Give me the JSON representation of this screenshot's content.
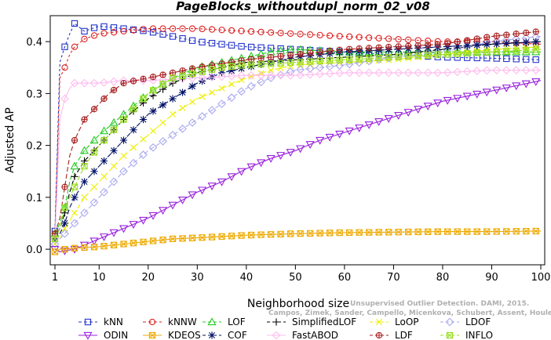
{
  "chart_data": {
    "type": "line",
    "title": "PageBlocks_withoutdupl_norm_02_v08",
    "xlabel": "Neighborhood size",
    "ylabel": "Adjusted AP",
    "xlim": [
      1,
      100
    ],
    "ylim": [
      -0.03,
      0.45
    ],
    "xticks": [
      1,
      10,
      20,
      30,
      40,
      50,
      60,
      70,
      80,
      90,
      100
    ],
    "yticks": [
      0.0,
      0.1,
      0.2,
      0.3,
      0.4
    ],
    "ytick_labels": [
      "0.0",
      "0.1",
      "0.2",
      "0.3",
      "0.4"
    ],
    "grid": false,
    "legend_position": "bottom",
    "watermark": [
      "Unsupervised Outlier Detection. DAMI, 2015.",
      "Campos, Zimek, Sander, Campello, Micenkova, Schubert, Assent, Houle"
    ],
    "series": [
      {
        "name": "kNN",
        "color": "#2233cc",
        "marker": "square",
        "dash": "3,3",
        "points": [
          [
            1,
            0.035
          ],
          [
            2,
            0.36
          ],
          [
            3,
            0.39
          ],
          [
            4,
            0.415
          ],
          [
            5,
            0.435
          ],
          [
            7,
            0.42
          ],
          [
            10,
            0.43
          ],
          [
            15,
            0.425
          ],
          [
            20,
            0.42
          ],
          [
            25,
            0.41
          ],
          [
            30,
            0.4
          ],
          [
            35,
            0.395
          ],
          [
            40,
            0.39
          ],
          [
            50,
            0.385
          ],
          [
            60,
            0.38
          ],
          [
            70,
            0.375
          ],
          [
            80,
            0.37
          ],
          [
            90,
            0.368
          ],
          [
            100,
            0.365
          ]
        ]
      },
      {
        "name": "kNNW",
        "color": "#dd2222",
        "marker": "circle",
        "dash": "3,3",
        "points": [
          [
            1,
            0.03
          ],
          [
            2,
            0.33
          ],
          [
            3,
            0.35
          ],
          [
            4,
            0.375
          ],
          [
            5,
            0.39
          ],
          [
            7,
            0.405
          ],
          [
            10,
            0.415
          ],
          [
            15,
            0.42
          ],
          [
            20,
            0.425
          ],
          [
            30,
            0.425
          ],
          [
            40,
            0.42
          ],
          [
            50,
            0.415
          ],
          [
            60,
            0.41
          ],
          [
            70,
            0.405
          ],
          [
            80,
            0.4
          ],
          [
            90,
            0.4
          ],
          [
            100,
            0.395
          ]
        ]
      },
      {
        "name": "LOF",
        "color": "#22cc22",
        "marker": "triangle",
        "dash": "6,3",
        "points": [
          [
            1,
            0.03
          ],
          [
            2,
            0.05
          ],
          [
            3,
            0.08
          ],
          [
            4,
            0.13
          ],
          [
            5,
            0.16
          ],
          [
            7,
            0.19
          ],
          [
            10,
            0.22
          ],
          [
            15,
            0.26
          ],
          [
            20,
            0.3
          ],
          [
            25,
            0.33
          ],
          [
            30,
            0.35
          ],
          [
            35,
            0.36
          ],
          [
            40,
            0.37
          ],
          [
            45,
            0.38
          ],
          [
            50,
            0.385
          ],
          [
            60,
            0.38
          ],
          [
            70,
            0.38
          ],
          [
            80,
            0.38
          ],
          [
            90,
            0.38
          ],
          [
            100,
            0.38
          ]
        ]
      },
      {
        "name": "SimplifiedLOF",
        "color": "#000000",
        "marker": "plus",
        "dash": "6,3",
        "points": [
          [
            1,
            0.02
          ],
          [
            2,
            0.04
          ],
          [
            3,
            0.07
          ],
          [
            4,
            0.11
          ],
          [
            5,
            0.14
          ],
          [
            7,
            0.17
          ],
          [
            10,
            0.2
          ],
          [
            15,
            0.25
          ],
          [
            20,
            0.29
          ],
          [
            25,
            0.32
          ],
          [
            30,
            0.34
          ],
          [
            35,
            0.35
          ],
          [
            40,
            0.36
          ],
          [
            50,
            0.365
          ],
          [
            60,
            0.37
          ],
          [
            70,
            0.375
          ],
          [
            80,
            0.385
          ],
          [
            90,
            0.395
          ],
          [
            100,
            0.4
          ]
        ]
      },
      {
        "name": "LoOP",
        "color": "#eeee00",
        "marker": "x",
        "dash": "6,3",
        "points": [
          [
            1,
            0.01
          ],
          [
            2,
            0.02
          ],
          [
            3,
            0.04
          ],
          [
            5,
            0.07
          ],
          [
            7,
            0.1
          ],
          [
            10,
            0.13
          ],
          [
            15,
            0.18
          ],
          [
            20,
            0.22
          ],
          [
            25,
            0.26
          ],
          [
            30,
            0.29
          ],
          [
            35,
            0.31
          ],
          [
            40,
            0.33
          ],
          [
            45,
            0.345
          ],
          [
            50,
            0.355
          ],
          [
            60,
            0.36
          ],
          [
            70,
            0.365
          ],
          [
            80,
            0.375
          ],
          [
            90,
            0.385
          ],
          [
            100,
            0.39
          ]
        ]
      },
      {
        "name": "LDOF",
        "color": "#aaaaee",
        "marker": "diamond",
        "dash": "6,3",
        "points": [
          [
            1,
            0.01
          ],
          [
            2,
            0.02
          ],
          [
            3,
            0.03
          ],
          [
            5,
            0.05
          ],
          [
            7,
            0.07
          ],
          [
            10,
            0.1
          ],
          [
            15,
            0.15
          ],
          [
            20,
            0.19
          ],
          [
            25,
            0.22
          ],
          [
            30,
            0.25
          ],
          [
            35,
            0.28
          ],
          [
            40,
            0.31
          ],
          [
            45,
            0.33
          ],
          [
            50,
            0.345
          ],
          [
            60,
            0.355
          ],
          [
            70,
            0.37
          ],
          [
            80,
            0.38
          ],
          [
            90,
            0.4
          ],
          [
            100,
            0.41
          ]
        ]
      },
      {
        "name": "ODIN",
        "color": "#9922dd",
        "marker": "tri-down",
        "dash": "",
        "points": [
          [
            1,
            0.0
          ],
          [
            2,
            -0.005
          ],
          [
            3,
            -0.003
          ],
          [
            5,
            0.0
          ],
          [
            10,
            0.02
          ],
          [
            15,
            0.04
          ],
          [
            20,
            0.06
          ],
          [
            25,
            0.085
          ],
          [
            30,
            0.11
          ],
          [
            35,
            0.13
          ],
          [
            40,
            0.155
          ],
          [
            45,
            0.175
          ],
          [
            50,
            0.19
          ],
          [
            55,
            0.21
          ],
          [
            60,
            0.225
          ],
          [
            65,
            0.24
          ],
          [
            70,
            0.255
          ],
          [
            75,
            0.27
          ],
          [
            80,
            0.285
          ],
          [
            85,
            0.295
          ],
          [
            90,
            0.305
          ],
          [
            95,
            0.315
          ],
          [
            100,
            0.325
          ]
        ]
      },
      {
        "name": "KDEOS",
        "color": "#eeaa00",
        "marker": "square-x",
        "dash": "",
        "points": [
          [
            1,
            -0.005
          ],
          [
            2,
            0.0
          ],
          [
            3,
            0.0
          ],
          [
            5,
            0.002
          ],
          [
            10,
            0.005
          ],
          [
            15,
            0.01
          ],
          [
            20,
            0.015
          ],
          [
            25,
            0.02
          ],
          [
            30,
            0.022
          ],
          [
            40,
            0.027
          ],
          [
            50,
            0.03
          ],
          [
            60,
            0.032
          ],
          [
            70,
            0.033
          ],
          [
            80,
            0.034
          ],
          [
            90,
            0.034
          ],
          [
            100,
            0.035
          ]
        ]
      },
      {
        "name": "COF",
        "color": "#001166",
        "marker": "asterisk",
        "dash": "6,3",
        "points": [
          [
            1,
            0.02
          ],
          [
            2,
            0.03
          ],
          [
            3,
            0.05
          ],
          [
            4,
            0.08
          ],
          [
            5,
            0.1
          ],
          [
            7,
            0.13
          ],
          [
            10,
            0.16
          ],
          [
            15,
            0.21
          ],
          [
            20,
            0.26
          ],
          [
            25,
            0.29
          ],
          [
            30,
            0.32
          ],
          [
            35,
            0.34
          ],
          [
            40,
            0.35
          ],
          [
            45,
            0.36
          ],
          [
            50,
            0.37
          ],
          [
            60,
            0.38
          ],
          [
            70,
            0.385
          ],
          [
            80,
            0.39
          ],
          [
            90,
            0.395
          ],
          [
            100,
            0.4
          ]
        ]
      },
      {
        "name": "FastABOD",
        "color": "#ffbbee",
        "marker": "diamond",
        "dash": "",
        "points": [
          [
            1,
            0.02
          ],
          [
            2,
            0.25
          ],
          [
            3,
            0.29
          ],
          [
            4,
            0.31
          ],
          [
            5,
            0.32
          ],
          [
            7,
            0.32
          ],
          [
            10,
            0.32
          ],
          [
            15,
            0.325
          ],
          [
            20,
            0.325
          ],
          [
            30,
            0.33
          ],
          [
            40,
            0.335
          ],
          [
            50,
            0.335
          ],
          [
            60,
            0.34
          ],
          [
            70,
            0.34
          ],
          [
            80,
            0.34
          ],
          [
            90,
            0.345
          ],
          [
            100,
            0.345
          ]
        ]
      },
      {
        "name": "LDF",
        "color": "#aa2222",
        "marker": "circle-plus",
        "dash": "6,3",
        "points": [
          [
            1,
            0.03
          ],
          [
            2,
            0.06
          ],
          [
            3,
            0.12
          ],
          [
            4,
            0.18
          ],
          [
            5,
            0.21
          ],
          [
            7,
            0.25
          ],
          [
            10,
            0.28
          ],
          [
            12,
            0.3
          ],
          [
            15,
            0.32
          ],
          [
            20,
            0.33
          ],
          [
            25,
            0.34
          ],
          [
            30,
            0.35
          ],
          [
            40,
            0.365
          ],
          [
            50,
            0.375
          ],
          [
            60,
            0.385
          ],
          [
            70,
            0.39
          ],
          [
            80,
            0.395
          ],
          [
            90,
            0.41
          ],
          [
            100,
            0.42
          ]
        ]
      },
      {
        "name": "INFLO",
        "color": "#99dd22",
        "marker": "square-x",
        "dash": "6,3",
        "points": [
          [
            1,
            0.02
          ],
          [
            2,
            0.04
          ],
          [
            3,
            0.08
          ],
          [
            5,
            0.12
          ],
          [
            7,
            0.16
          ],
          [
            10,
            0.2
          ],
          [
            15,
            0.25
          ],
          [
            20,
            0.3
          ],
          [
            25,
            0.33
          ],
          [
            30,
            0.34
          ],
          [
            35,
            0.35
          ],
          [
            40,
            0.355
          ],
          [
            50,
            0.36
          ],
          [
            60,
            0.365
          ],
          [
            70,
            0.37
          ],
          [
            80,
            0.375
          ],
          [
            90,
            0.38
          ],
          [
            100,
            0.385
          ]
        ]
      }
    ]
  }
}
